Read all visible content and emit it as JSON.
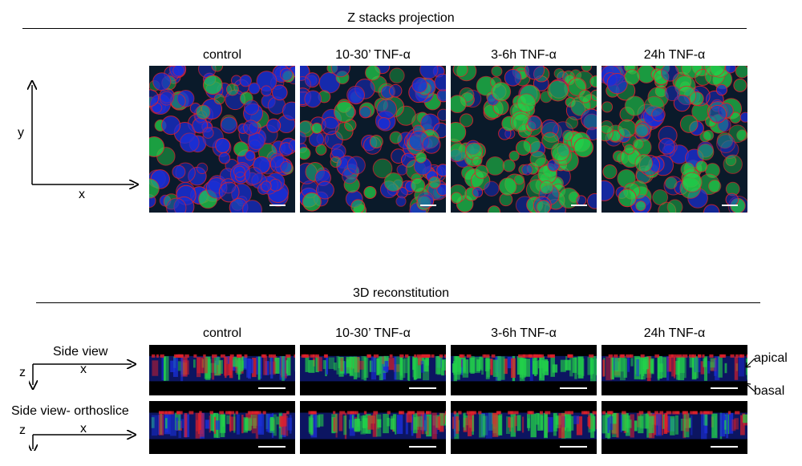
{
  "top_section": {
    "title": "Z stacks projection",
    "axis": {
      "vertical_label": "y",
      "horizontal_label": "x"
    },
    "columns": [
      "control",
      "10-30’ TNF-α",
      "3-6h TNF-α",
      "24h TNF-α"
    ]
  },
  "bottom_section": {
    "title": "3D reconstitution",
    "columns": [
      "control",
      "10-30’ TNF-α",
      "3-6h TNF-α",
      "24h TNF-α"
    ],
    "rows": [
      {
        "label": "Side view",
        "axis_z": "z",
        "axis_x": "x"
      },
      {
        "label": "Side view- orthoslice",
        "axis_z": "z",
        "axis_x": "x"
      }
    ],
    "annotations": {
      "apical": "apical",
      "basal": "basal"
    }
  },
  "colors": {
    "nuclei": "#1a2fd8",
    "membrane": "#e0202a",
    "green": "#22d04a",
    "background": "#000000",
    "scale_bar": "#ffffff"
  }
}
